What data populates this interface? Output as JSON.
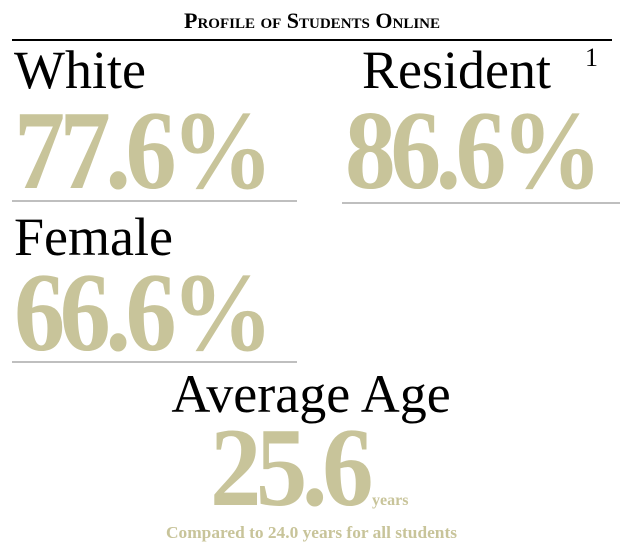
{
  "header": {
    "title": "Profile of Students Online"
  },
  "stats": [
    {
      "label": "White",
      "value": "77.6%"
    },
    {
      "label": "Resident",
      "footnote": "1",
      "value": "86.6%"
    },
    {
      "label": "Female",
      "value": "66.6%"
    }
  ],
  "age": {
    "label": "Average Age",
    "value": "25.6",
    "unit": "years",
    "note": "Compared to 24.0 years for all students"
  }
}
